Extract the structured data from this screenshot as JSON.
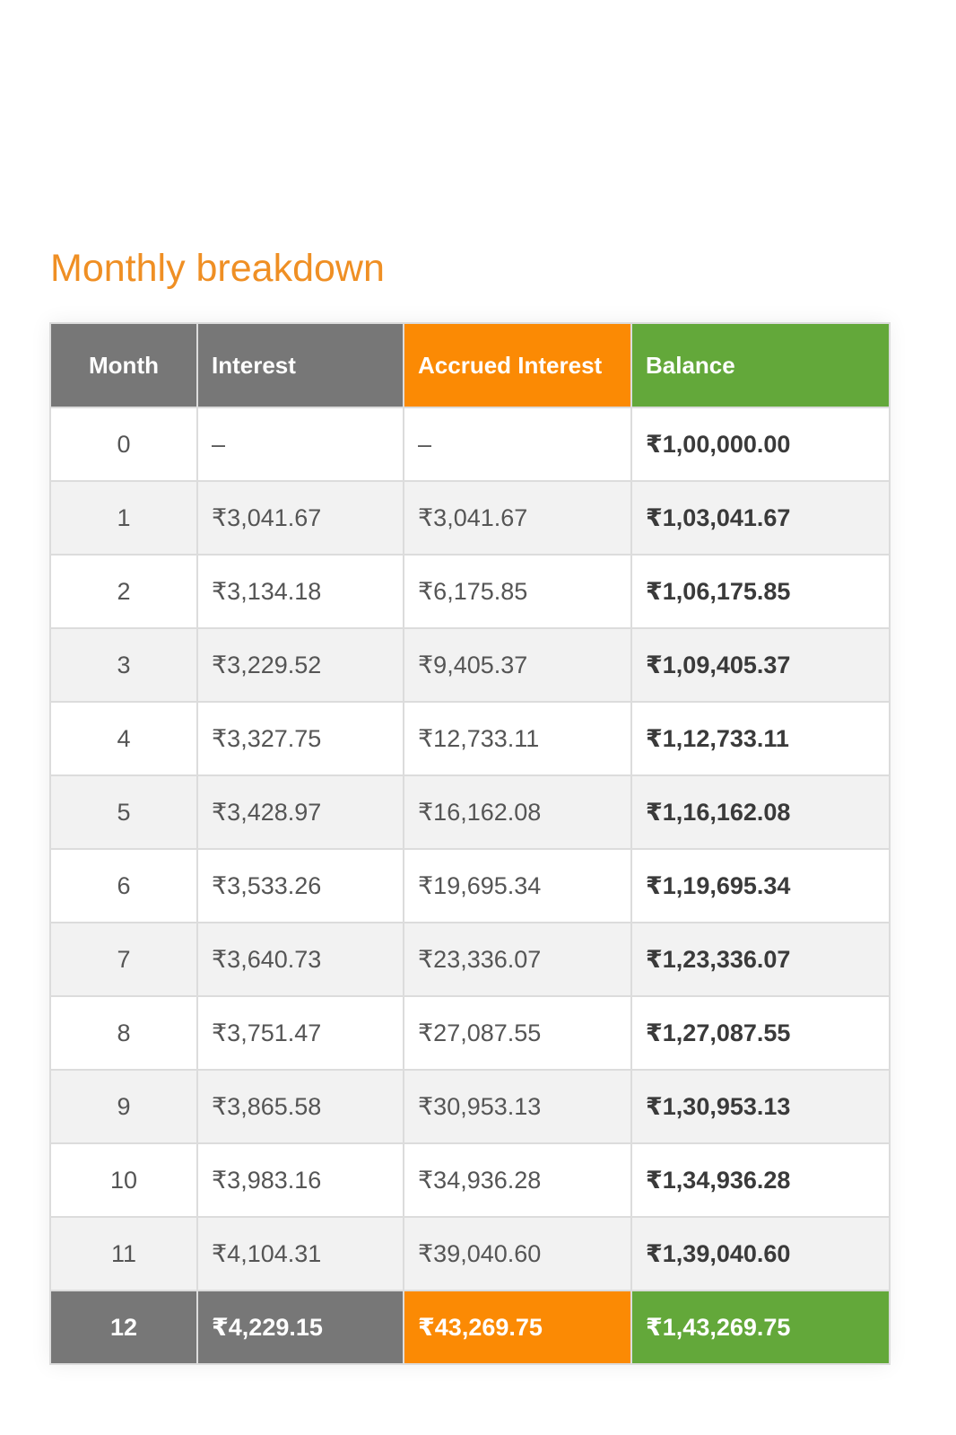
{
  "title": "Monthly breakdown",
  "colors": {
    "title": "#ef8f24",
    "header_gray": "#777777",
    "accent_orange": "#fb8a04",
    "accent_green": "#63a83a"
  },
  "table": {
    "headers": {
      "month": "Month",
      "interest": "Interest",
      "accrued": "Accrued Interest",
      "balance": "Balance"
    },
    "rows": [
      {
        "month": "0",
        "interest": "–",
        "accrued": "–",
        "balance": "₹1,00,000.00"
      },
      {
        "month": "1",
        "interest": "₹3,041.67",
        "accrued": "₹3,041.67",
        "balance": "₹1,03,041.67"
      },
      {
        "month": "2",
        "interest": "₹3,134.18",
        "accrued": "₹6,175.85",
        "balance": "₹1,06,175.85"
      },
      {
        "month": "3",
        "interest": "₹3,229.52",
        "accrued": "₹9,405.37",
        "balance": "₹1,09,405.37"
      },
      {
        "month": "4",
        "interest": "₹3,327.75",
        "accrued": "₹12,733.11",
        "balance": "₹1,12,733.11"
      },
      {
        "month": "5",
        "interest": "₹3,428.97",
        "accrued": "₹16,162.08",
        "balance": "₹1,16,162.08"
      },
      {
        "month": "6",
        "interest": "₹3,533.26",
        "accrued": "₹19,695.34",
        "balance": "₹1,19,695.34"
      },
      {
        "month": "7",
        "interest": "₹3,640.73",
        "accrued": "₹23,336.07",
        "balance": "₹1,23,336.07"
      },
      {
        "month": "8",
        "interest": "₹3,751.47",
        "accrued": "₹27,087.55",
        "balance": "₹1,27,087.55"
      },
      {
        "month": "9",
        "interest": "₹3,865.58",
        "accrued": "₹30,953.13",
        "balance": "₹1,30,953.13"
      },
      {
        "month": "10",
        "interest": "₹3,983.16",
        "accrued": "₹34,936.28",
        "balance": "₹1,34,936.28"
      },
      {
        "month": "11",
        "interest": "₹4,104.31",
        "accrued": "₹39,040.60",
        "balance": "₹1,39,040.60"
      }
    ],
    "total": {
      "month": "12",
      "interest": "₹4,229.15",
      "accrued": "₹43,269.75",
      "balance": "₹1,43,269.75"
    }
  }
}
